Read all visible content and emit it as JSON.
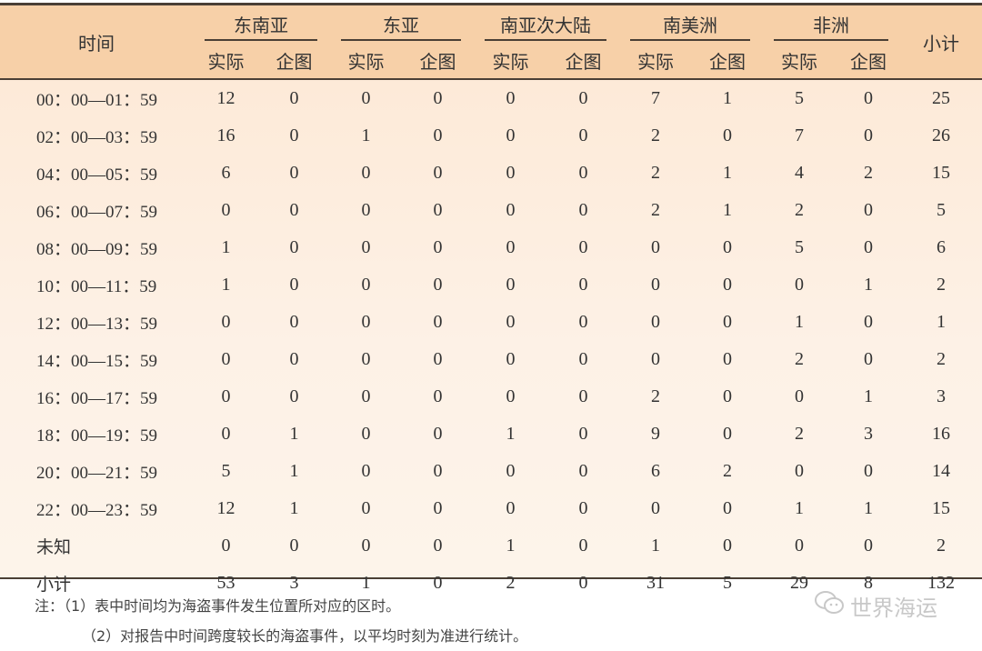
{
  "header": {
    "time_label": "时间",
    "total_label": "小计",
    "regions": [
      "东南亚",
      "东亚",
      "南亚次大陆",
      "南美洲",
      "非洲"
    ],
    "sub_labels": [
      "实际",
      "企图"
    ]
  },
  "rows": [
    {
      "time": "00：00—01：59",
      "values": [
        12,
        0,
        0,
        0,
        0,
        0,
        7,
        1,
        5,
        0
      ],
      "total": 25
    },
    {
      "time": "02：00—03：59",
      "values": [
        16,
        0,
        1,
        0,
        0,
        0,
        2,
        0,
        7,
        0
      ],
      "total": 26
    },
    {
      "time": "04：00—05：59",
      "values": [
        6,
        0,
        0,
        0,
        0,
        0,
        2,
        1,
        4,
        2
      ],
      "total": 15
    },
    {
      "time": "06：00—07：59",
      "values": [
        0,
        0,
        0,
        0,
        0,
        0,
        2,
        1,
        2,
        0
      ],
      "total": 5
    },
    {
      "time": "08：00—09：59",
      "values": [
        1,
        0,
        0,
        0,
        0,
        0,
        0,
        0,
        5,
        0
      ],
      "total": 6
    },
    {
      "time": "10：00—11：59",
      "values": [
        1,
        0,
        0,
        0,
        0,
        0,
        0,
        0,
        0,
        1
      ],
      "total": 2
    },
    {
      "time": "12：00—13：59",
      "values": [
        0,
        0,
        0,
        0,
        0,
        0,
        0,
        0,
        1,
        0
      ],
      "total": 1
    },
    {
      "time": "14：00—15：59",
      "values": [
        0,
        0,
        0,
        0,
        0,
        0,
        0,
        0,
        2,
        0
      ],
      "total": 2
    },
    {
      "time": "16：00—17：59",
      "values": [
        0,
        0,
        0,
        0,
        0,
        0,
        2,
        0,
        0,
        1
      ],
      "total": 3
    },
    {
      "time": "18：00—19：59",
      "values": [
        0,
        1,
        0,
        0,
        1,
        0,
        9,
        0,
        2,
        3
      ],
      "total": 16
    },
    {
      "time": "20：00—21：59",
      "values": [
        5,
        1,
        0,
        0,
        0,
        0,
        6,
        2,
        0,
        0
      ],
      "total": 14
    },
    {
      "time": "22：00—23：59",
      "values": [
        12,
        1,
        0,
        0,
        0,
        0,
        0,
        0,
        1,
        1
      ],
      "total": 15
    },
    {
      "time": "未知",
      "values": [
        0,
        0,
        0,
        0,
        1,
        0,
        1,
        0,
        0,
        0
      ],
      "total": 2
    },
    {
      "time": "小计",
      "values": [
        53,
        3,
        1,
        0,
        2,
        0,
        31,
        5,
        29,
        8
      ],
      "total": 132
    }
  ],
  "notes": [
    "注：（1）表中时间均为海盗事件发生位置所对应的区时。",
    "（2）对报告中时间跨度较长的海盗事件，以平均时刻为准进行统计。"
  ],
  "watermark": "世界海运",
  "colors": {
    "header_bg": "#f7d0a8",
    "body_bg": "#fde8d4",
    "rule": "#4a3f35"
  }
}
